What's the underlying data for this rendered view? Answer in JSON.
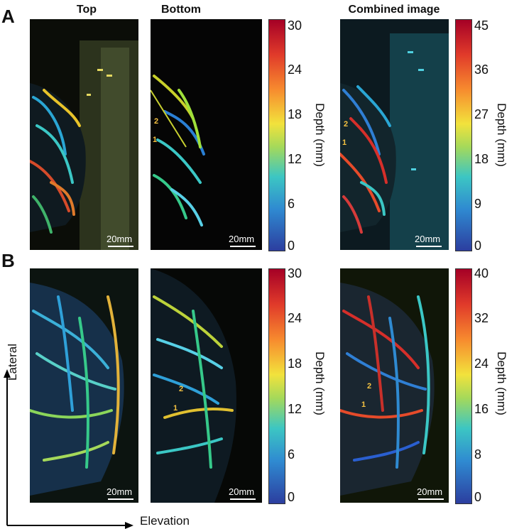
{
  "panels": {
    "a": {
      "letter": "A",
      "colorbar1_ticks": [
        "30",
        "24",
        "18",
        "12",
        "6",
        "0"
      ],
      "colorbar2_ticks": [
        "45",
        "36",
        "27",
        "18",
        "9",
        "0"
      ]
    },
    "b": {
      "letter": "B",
      "colorbar1_ticks": [
        "30",
        "24",
        "18",
        "12",
        "6",
        "0"
      ],
      "colorbar2_ticks": [
        "40",
        "32",
        "24",
        "16",
        "8",
        "0"
      ]
    }
  },
  "column_titles": {
    "top": "Top",
    "bottom": "Bottom",
    "combined": "Combined image"
  },
  "depth_label": "Depth (mm)",
  "scale_bar": "20mm",
  "markers": {
    "one": "1",
    "two": "2"
  },
  "axes": {
    "lateral": "Lateral",
    "elevation": "Elevation"
  },
  "colors": {
    "colormap_top": "#b2182b",
    "colormap_mid": "#ffff33",
    "colormap_bottom": "#2c3e9f"
  }
}
